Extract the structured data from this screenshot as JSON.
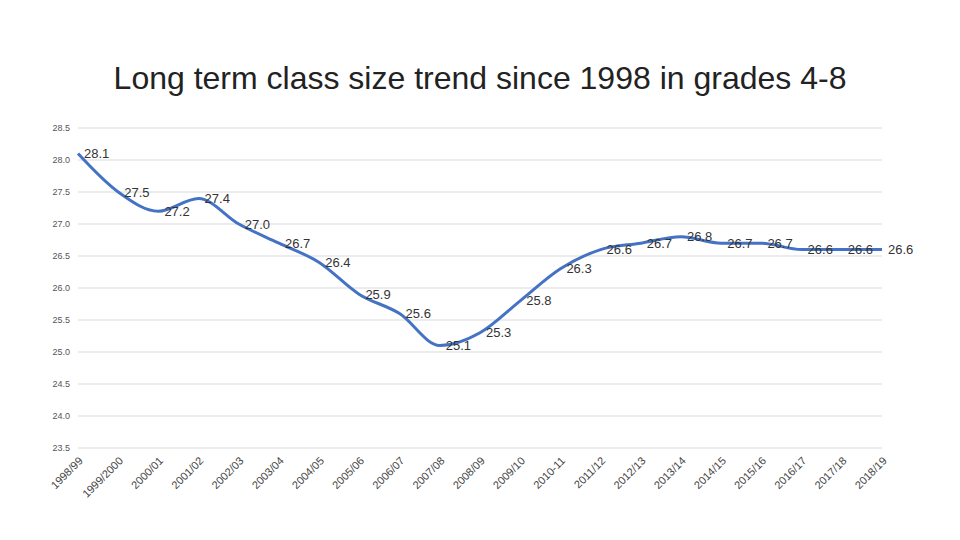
{
  "chart_data": {
    "type": "line",
    "title": "Long term class size trend since 1998 in grades 4-8",
    "categories": [
      "1998/99",
      "1999/2000",
      "2000/01",
      "2001/02",
      "2002/03",
      "2003/04",
      "2004/05",
      "2005/06",
      "2006/07",
      "2007/08",
      "2008/09",
      "2009/10",
      "2010-11",
      "2011/12",
      "2012/13",
      "2013/14",
      "2014/15",
      "2015/16",
      "2016/17",
      "2017/18",
      "2018/19"
    ],
    "values": [
      28.1,
      27.5,
      27.2,
      27.4,
      27.0,
      26.7,
      26.4,
      25.9,
      25.6,
      25.1,
      25.3,
      25.8,
      26.3,
      26.6,
      26.7,
      26.8,
      26.7,
      26.7,
      26.6,
      26.6,
      26.6
    ],
    "value_labels": [
      "28.1",
      "27.5",
      "27.2",
      "27.4",
      "27.0",
      "26.7",
      "26.4",
      "25.9",
      "25.6",
      "25.1",
      "25.3",
      "25.8",
      "26.3",
      "26.6",
      "26.7",
      "26.8",
      "26.7",
      "26.7",
      "26.6",
      "26.6",
      "26.6"
    ],
    "color": "#4472c4",
    "ylim": [
      23.5,
      28.5
    ],
    "yticks": [
      23.5,
      {
        "value": 24,
        "label": "24.0"
      },
      24.5,
      {
        "value": 25,
        "label": "25.0"
      },
      25.5,
      {
        "value": 26,
        "label": "26.0"
      },
      26.5,
      {
        "value": 27,
        "label": "27.0"
      },
      27.5,
      {
        "value": 28,
        "label": "28.0"
      },
      28.5
    ],
    "grid": true,
    "data_labels": true
  }
}
